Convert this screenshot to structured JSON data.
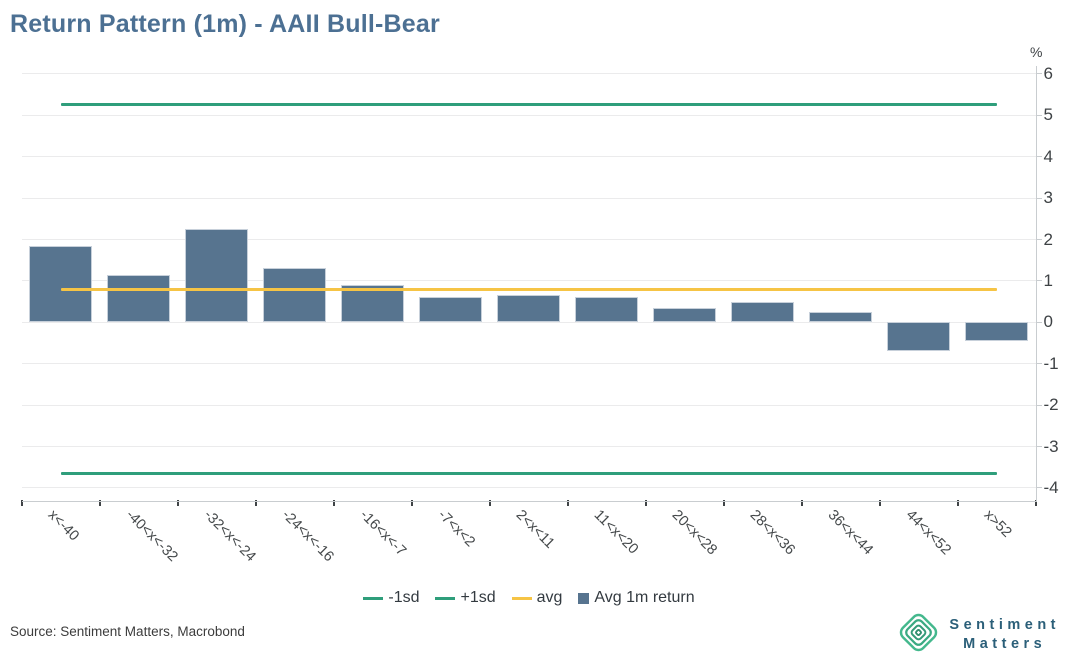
{
  "title": "Return Pattern (1m) - AAII Bull-Bear",
  "y_axis": {
    "unit_label": "%",
    "ticks": [
      6,
      5,
      4,
      3,
      2,
      1,
      0,
      -1,
      -2,
      -3,
      -4
    ]
  },
  "chart_data": {
    "type": "bar",
    "title": "Return Pattern (1m) - AAII Bull-Bear",
    "categories": [
      "x<-40",
      "-40<x<-32",
      "-32<x<-24",
      "-24<x<-16",
      "-16<x<-7",
      "-7<x<2",
      "2<x<11",
      "11<x<20",
      "20<x<28",
      "28<x<36",
      "36<x<44",
      "44<x<52",
      "x>52"
    ],
    "series": [
      {
        "name": "Avg 1m return",
        "color": "#57748f",
        "values": [
          1.85,
          1.15,
          2.25,
          1.3,
          0.9,
          0.6,
          0.65,
          0.6,
          0.35,
          0.5,
          0.25,
          -0.7,
          -0.45
        ]
      }
    ],
    "reference_lines": [
      {
        "name": "-1sd",
        "value": -3.65,
        "color": "#2f9e7b"
      },
      {
        "name": "+1sd",
        "value": 5.25,
        "color": "#2f9e7b"
      },
      {
        "name": "avg",
        "value": 0.8,
        "color": "#f6c445"
      }
    ],
    "xlabel": "",
    "ylabel": "%",
    "ylim": [
      -4.35,
      6.35
    ],
    "ytick_step": 1,
    "grid": true,
    "legend_position": "bottom"
  },
  "legend": {
    "items": [
      {
        "label": "-1sd",
        "swatch": "line",
        "color": "#2f9e7b"
      },
      {
        "label": "+1sd",
        "swatch": "line",
        "color": "#2f9e7b"
      },
      {
        "label": "avg",
        "swatch": "line",
        "color": "#f6c445"
      },
      {
        "label": "Avg 1m return",
        "swatch": "square",
        "color": "#57748f"
      }
    ]
  },
  "footer": {
    "source": "Source: Sentiment Matters, Macrobond"
  },
  "logo": {
    "line1": "Sentiment",
    "line2": "Matters",
    "icon_color": "#3cb189"
  },
  "colors": {
    "title": "#4c7093",
    "bar": "#57748f",
    "sd_line": "#2f9e7b",
    "avg_line": "#f6c445",
    "gridline": "#ebebec",
    "axis": "#c9cdd0"
  }
}
